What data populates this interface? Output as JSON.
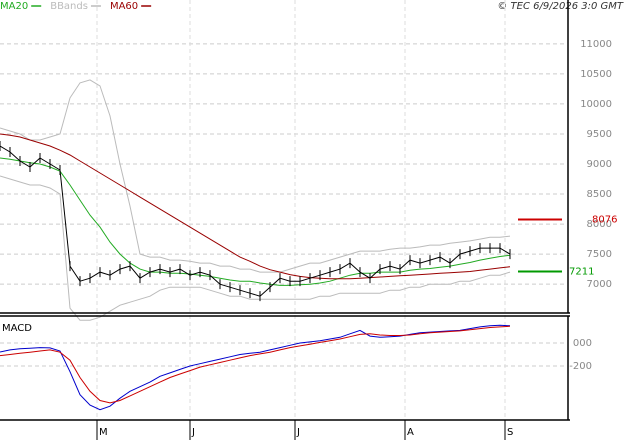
{
  "chart_data": [
    {
      "type": "line",
      "copyright": "© TEC 6/9/2026 3:0 GMT",
      "x": [
        0,
        1,
        2,
        3,
        4,
        5,
        6,
        7,
        8,
        9,
        10,
        11,
        12,
        13,
        14,
        15,
        16,
        17,
        18,
        19,
        20,
        21,
        22,
        23,
        24,
        25,
        26,
        27,
        28,
        29,
        30,
        31,
        32,
        33,
        34,
        35,
        36,
        37,
        38,
        39,
        40,
        41,
        42,
        43,
        44,
        45,
        46,
        47,
        48,
        49,
        50,
        51
      ],
      "xlim": [
        0,
        56.5
      ],
      "xticks": [
        {
          "value": 9.7,
          "label": "M"
        },
        {
          "value": 19,
          "label": "J"
        },
        {
          "value": 29.5,
          "label": "J"
        },
        {
          "value": 40.5,
          "label": "A"
        },
        {
          "value": 50.5,
          "label": "S"
        }
      ],
      "ylim": [
        6520,
        11730
      ],
      "yticks": [
        7000,
        7500,
        8000,
        8500,
        9000,
        9500,
        10000,
        10500,
        11000
      ],
      "grid": true,
      "price": {
        "color": "#000000",
        "values": [
          9300,
          9200,
          9050,
          8950,
          9100,
          9000,
          8900,
          7300,
          7050,
          7100,
          7200,
          7150,
          7250,
          7300,
          7100,
          7200,
          7250,
          7200,
          7250,
          7150,
          7200,
          7150,
          7000,
          6950,
          6900,
          6850,
          6800,
          6950,
          7100,
          7050,
          7050,
          7100,
          7150,
          7200,
          7250,
          7350,
          7200,
          7100,
          7250,
          7300,
          7250,
          7400,
          7350,
          7400,
          7450,
          7350,
          7500,
          7550,
          7600,
          7600,
          7600,
          7500
        ]
      },
      "series": [
        {
          "name": "MA20",
          "color": "#22aa22",
          "values": [
            9100,
            9080,
            9050,
            9020,
            9000,
            8950,
            8880,
            8650,
            8400,
            8150,
            7950,
            7700,
            7500,
            7350,
            7250,
            7200,
            7200,
            7180,
            7180,
            7170,
            7150,
            7130,
            7100,
            7070,
            7050,
            7050,
            7020,
            7000,
            6980,
            6980,
            6990,
            7000,
            7020,
            7050,
            7100,
            7150,
            7180,
            7180,
            7200,
            7200,
            7200,
            7230,
            7250,
            7260,
            7280,
            7300,
            7330,
            7360,
            7400,
            7430,
            7460,
            7480
          ]
        },
        {
          "name": "BBands",
          "color": "#bbbbbb",
          "values": [
            9600,
            9550,
            9500,
            9400,
            9400,
            9450,
            9500,
            10100,
            10350,
            10400,
            10300,
            9800,
            9000,
            8300,
            7500,
            7450,
            7450,
            7400,
            7400,
            7380,
            7350,
            7350,
            7300,
            7300,
            7250,
            7250,
            7200,
            7200,
            7200,
            7250,
            7300,
            7350,
            7350,
            7400,
            7450,
            7500,
            7550,
            7550,
            7550,
            7580,
            7600,
            7600,
            7620,
            7650,
            7650,
            7680,
            7700,
            7720,
            7750,
            7780,
            7780,
            7800
          ],
          "lower": [
            8800,
            8750,
            8700,
            8650,
            8650,
            8600,
            8500,
            6600,
            6400,
            6400,
            6450,
            6550,
            6650,
            6700,
            6750,
            6800,
            6900,
            6950,
            6950,
            6950,
            6950,
            6900,
            6850,
            6800,
            6800,
            6750,
            6750,
            6750,
            6750,
            6750,
            6750,
            6750,
            6800,
            6800,
            6850,
            6850,
            6850,
            6850,
            6850,
            6900,
            6900,
            6950,
            6950,
            7000,
            7000,
            7000,
            7050,
            7050,
            7100,
            7150,
            7150,
            7200
          ]
        },
        {
          "name": "MA60",
          "color": "#990000",
          "values": [
            9500,
            9480,
            9450,
            9400,
            9350,
            9300,
            9230,
            9150,
            9050,
            8950,
            8850,
            8750,
            8650,
            8550,
            8450,
            8350,
            8250,
            8150,
            8050,
            7950,
            7850,
            7750,
            7650,
            7550,
            7450,
            7380,
            7300,
            7240,
            7200,
            7160,
            7130,
            7110,
            7100,
            7090,
            7090,
            7090,
            7100,
            7110,
            7120,
            7130,
            7140,
            7150,
            7160,
            7170,
            7180,
            7190,
            7200,
            7210,
            7230,
            7250,
            7270,
            7290
          ]
        }
      ],
      "markers": [
        {
          "value": 8076,
          "color": "#cc0000"
        },
        {
          "value": 7211,
          "color": "#009900"
        }
      ]
    },
    {
      "type": "macd",
      "title": "MACD",
      "ylim": [
        -670,
        235
      ],
      "yticks": [
        {
          "value": 0,
          "label": "000"
        },
        -200
      ],
      "series": [
        {
          "color": "#0000cc",
          "values": [
            -78,
            -60,
            -50,
            -45,
            -40,
            -43,
            -70,
            -250,
            -450,
            -540,
            -580,
            -550,
            -480,
            -420,
            -380,
            -340,
            -290,
            -260,
            -230,
            -200,
            -180,
            -160,
            -140,
            -120,
            -100,
            -90,
            -80,
            -60,
            -40,
            -20,
            0,
            10,
            20,
            35,
            50,
            80,
            110,
            60,
            50,
            55,
            60,
            75,
            90,
            95,
            100,
            105,
            110,
            125,
            140,
            150,
            155,
            150
          ]
        },
        {
          "color": "#cc0000",
          "values": [
            -110,
            -100,
            -90,
            -80,
            -70,
            -60,
            -80,
            -150,
            -300,
            -420,
            -500,
            -520,
            -500,
            -460,
            -420,
            -380,
            -340,
            -300,
            -270,
            -240,
            -210,
            -190,
            -170,
            -150,
            -130,
            -110,
            -95,
            -80,
            -60,
            -40,
            -25,
            -10,
            5,
            20,
            35,
            55,
            75,
            80,
            70,
            65,
            65,
            70,
            80,
            90,
            95,
            100,
            105,
            115,
            125,
            135,
            140,
            145
          ]
        }
      ]
    }
  ]
}
